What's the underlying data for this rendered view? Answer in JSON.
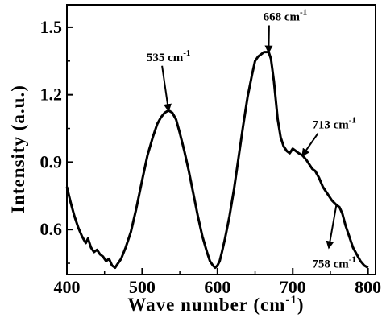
{
  "chart_data": {
    "type": "line",
    "xlabel": "Wave number (cm",
    "xlabel_sup": "-1",
    "xlabel_end": ")",
    "ylabel": "Intensity (a.u.)",
    "xlim": [
      400,
      810
    ],
    "ylim": [
      0.4,
      1.6
    ],
    "x_ticks": [
      400,
      500,
      600,
      700,
      800
    ],
    "x_tick_labels": [
      "400",
      "500",
      "600",
      "700",
      "800"
    ],
    "y_ticks": [
      0.6,
      0.9,
      1.2,
      1.5
    ],
    "y_tick_labels": [
      "0.6",
      "0.9",
      "1.2",
      "1.5"
    ],
    "grid": false,
    "line_color": "#000000",
    "series": [
      {
        "x": [
          400,
          405,
          410,
          415,
          420,
          425,
          428,
          432,
          436,
          440,
          444,
          448,
          452,
          456,
          460,
          464,
          468,
          472,
          478,
          485,
          492,
          500,
          507,
          514,
          520,
          525,
          530,
          535,
          540,
          545,
          550,
          556,
          562,
          568,
          574,
          580,
          586,
          590,
          594,
          597,
          600,
          603,
          606,
          610,
          616,
          622,
          628,
          634,
          640,
          646,
          650,
          654,
          658,
          662,
          666,
          668,
          671,
          675,
          680,
          684,
          688,
          692,
          696,
          700,
          704,
          708,
          713,
          718,
          722,
          726,
          730,
          735,
          740,
          746,
          752,
          758,
          762,
          766,
          770,
          775,
          780,
          785,
          790,
          795,
          800
        ],
        "y": [
          0.79,
          0.72,
          0.66,
          0.61,
          0.57,
          0.54,
          0.56,
          0.52,
          0.5,
          0.51,
          0.49,
          0.48,
          0.46,
          0.47,
          0.44,
          0.43,
          0.45,
          0.47,
          0.52,
          0.59,
          0.69,
          0.82,
          0.93,
          1.01,
          1.07,
          1.1,
          1.12,
          1.13,
          1.12,
          1.09,
          1.03,
          0.95,
          0.86,
          0.76,
          0.66,
          0.57,
          0.5,
          0.46,
          0.44,
          0.43,
          0.44,
          0.46,
          0.5,
          0.56,
          0.66,
          0.78,
          0.92,
          1.06,
          1.19,
          1.29,
          1.35,
          1.37,
          1.38,
          1.39,
          1.39,
          1.39,
          1.36,
          1.26,
          1.09,
          1.01,
          0.97,
          0.95,
          0.94,
          0.96,
          0.95,
          0.94,
          0.93,
          0.91,
          0.89,
          0.87,
          0.86,
          0.83,
          0.79,
          0.76,
          0.73,
          0.71,
          0.7,
          0.67,
          0.62,
          0.57,
          0.52,
          0.49,
          0.46,
          0.44,
          0.43
        ]
      }
    ],
    "annotations": [
      {
        "label": "535 cm",
        "sup": "-1",
        "point": [
          535,
          1.13
        ],
        "text_at": [
          535,
          1.35
        ]
      },
      {
        "label": "668 cm",
        "sup": "-1",
        "point": [
          668,
          1.39
        ],
        "text_at": [
          690,
          1.53
        ]
      },
      {
        "label": "713 cm",
        "sup": "-1",
        "point": [
          713,
          0.93
        ],
        "text_at": [
          755,
          1.05
        ]
      },
      {
        "label": "758 cm",
        "sup": "-1",
        "point": [
          758,
          0.71
        ],
        "text_at": [
          755,
          0.43
        ]
      }
    ]
  }
}
